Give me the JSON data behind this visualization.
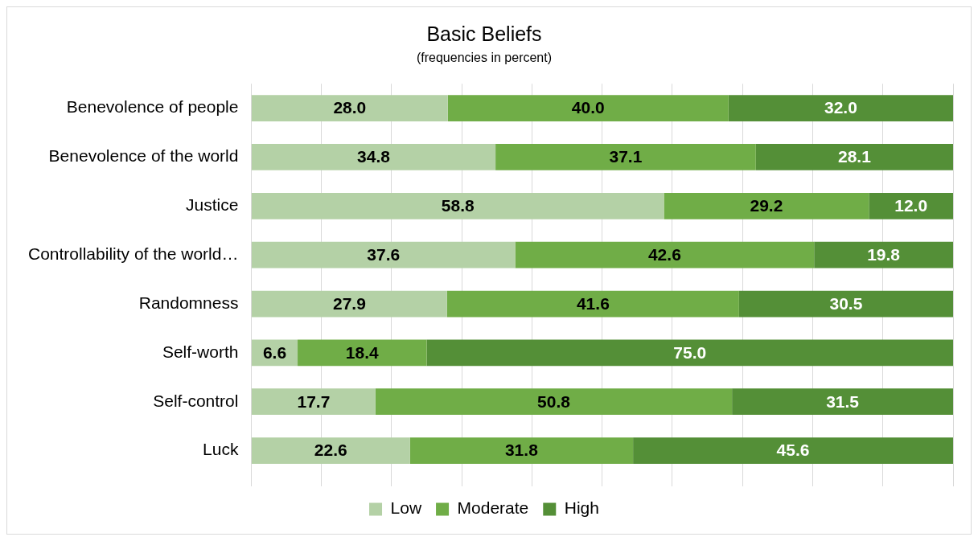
{
  "chart_data": {
    "type": "bar",
    "orientation": "horizontal",
    "stacked": true,
    "title": "Basic Beliefs",
    "subtitle": "(frequencies in percent)",
    "categories": [
      "Benevolence of people",
      "Benevolence of the world",
      "Justice",
      "Controllability of the world…",
      "Randomness",
      "Self-worth",
      "Self-control",
      "Luck"
    ],
    "series": [
      {
        "name": "Low",
        "color": "#b4d1a6",
        "values": [
          28.0,
          34.8,
          58.8,
          37.6,
          27.9,
          6.6,
          17.7,
          22.6
        ],
        "value_labels": [
          "28.0",
          "34.8",
          "58.8",
          "37.6",
          "27.9",
          "6.6",
          "17.7",
          "22.6"
        ]
      },
      {
        "name": "Moderate",
        "color": "#70ad47",
        "values": [
          40.0,
          37.1,
          29.2,
          42.6,
          41.6,
          18.4,
          50.8,
          31.8
        ],
        "value_labels": [
          "40.0",
          "37.1",
          "29.2",
          "42.6",
          "41.6",
          "18.4",
          "50.8",
          "31.8"
        ]
      },
      {
        "name": "High",
        "color": "#548f37",
        "values": [
          32.0,
          28.1,
          12.0,
          19.8,
          30.5,
          75.0,
          31.5,
          45.6
        ],
        "value_labels": [
          "32.0",
          "28.1",
          "12.0",
          "19.8",
          "30.5",
          "75.0",
          "31.5",
          "45.6"
        ]
      }
    ],
    "xlim": [
      0,
      100
    ],
    "xticks": [
      {
        "value": 0,
        "label": null
      },
      {
        "value": 10,
        "label": null
      },
      {
        "value": 20,
        "label": null
      },
      {
        "value": 30,
        "label": null
      },
      {
        "value": 40,
        "label": null
      },
      {
        "value": 50,
        "label": null
      },
      {
        "value": 60,
        "label": null
      },
      {
        "value": 70,
        "label": null
      },
      {
        "value": 80,
        "label": null
      },
      {
        "value": 90,
        "label": null
      },
      {
        "value": 100,
        "label": null
      }
    ],
    "tick_labels": "y",
    "grid": "x",
    "legend": "bottom"
  }
}
